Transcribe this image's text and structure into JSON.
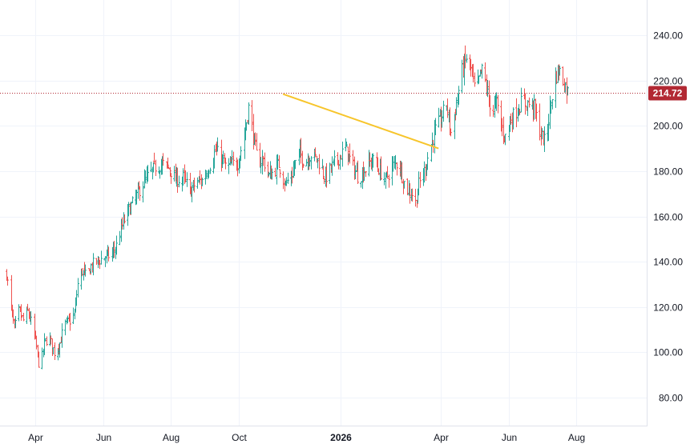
{
  "chart_data": {
    "type": "ohlc",
    "title": "",
    "xlabel": "",
    "ylabel": "",
    "ylim": [
      70,
      250
    ],
    "y_ticks": [
      "80.00",
      "100.00",
      "120.00",
      "140.00",
      "160.00",
      "180.00",
      "200.00",
      "220.00",
      "240.00"
    ],
    "x_ticks": [
      {
        "label": "Apr",
        "date": "2025-04-01",
        "bold": false
      },
      {
        "label": "Jun",
        "date": "2025-06-01",
        "bold": false
      },
      {
        "label": "Aug",
        "date": "2025-08-01",
        "bold": false
      },
      {
        "label": "Oct",
        "date": "2025-10-01",
        "bold": false
      },
      {
        "label": "2026",
        "date": "2026-01-01",
        "bold": true
      },
      {
        "label": "Apr",
        "date": "2026-04-01",
        "bold": false
      },
      {
        "label": "Jun",
        "date": "2026-06-01",
        "bold": false
      },
      {
        "label": "Aug",
        "date": "2026-08-01",
        "bold": false
      }
    ],
    "grid": true,
    "last_price": 214.72,
    "last_price_label": "214.72",
    "colors": {
      "up": "#26a69a",
      "down": "#ef5350",
      "trendline": "#f7c52b",
      "last_price": "#b22833",
      "grid": "#f0f3fa",
      "axis": "#e0e3eb",
      "text": "#131722"
    },
    "trendline": {
      "start": {
        "date": "2025-11-10",
        "value": 214
      },
      "end": {
        "date": "2026-03-30",
        "value": 190
      }
    },
    "anchors": [
      [
        "2025-03-06",
        135
      ],
      [
        "2025-03-09",
        122
      ],
      [
        "2025-03-13",
        110
      ],
      [
        "2025-03-17",
        118
      ],
      [
        "2025-03-21",
        114
      ],
      [
        "2025-03-25",
        118
      ],
      [
        "2025-03-29",
        112
      ],
      [
        "2025-04-02",
        102
      ],
      [
        "2025-04-05",
        92
      ],
      [
        "2025-04-09",
        104
      ],
      [
        "2025-04-13",
        107
      ],
      [
        "2025-04-18",
        100
      ],
      [
        "2025-04-23",
        104
      ],
      [
        "2025-04-27",
        112
      ],
      [
        "2025-05-02",
        114
      ],
      [
        "2025-05-06",
        117
      ],
      [
        "2025-05-09",
        130
      ],
      [
        "2025-05-13",
        136
      ],
      [
        "2025-05-17",
        133
      ],
      [
        "2025-05-21",
        138
      ],
      [
        "2025-05-26",
        140
      ],
      [
        "2025-06-02",
        142
      ],
      [
        "2025-06-08",
        143
      ],
      [
        "2025-06-13",
        147
      ],
      [
        "2025-06-18",
        156
      ],
      [
        "2025-06-24",
        163
      ],
      [
        "2025-06-30",
        168
      ],
      [
        "2025-07-06",
        174
      ],
      [
        "2025-07-12",
        178
      ],
      [
        "2025-07-18",
        182
      ],
      [
        "2025-07-25",
        183
      ],
      [
        "2025-07-31",
        181
      ],
      [
        "2025-08-05",
        176
      ],
      [
        "2025-08-12",
        177
      ],
      [
        "2025-08-18",
        171
      ],
      [
        "2025-08-24",
        175
      ],
      [
        "2025-08-30",
        176
      ],
      [
        "2025-09-05",
        183
      ],
      [
        "2025-09-10",
        189
      ],
      [
        "2025-09-15",
        186
      ],
      [
        "2025-09-20",
        181
      ],
      [
        "2025-09-25",
        183
      ],
      [
        "2025-09-30",
        184
      ],
      [
        "2025-10-05",
        193
      ],
      [
        "2025-10-10",
        208
      ],
      [
        "2025-10-14",
        196
      ],
      [
        "2025-10-18",
        184
      ],
      [
        "2025-10-23",
        185
      ],
      [
        "2025-10-28",
        178
      ],
      [
        "2025-11-02",
        180
      ],
      [
        "2025-11-06",
        183
      ],
      [
        "2025-11-12",
        174
      ],
      [
        "2025-11-18",
        179
      ],
      [
        "2025-11-24",
        188
      ],
      [
        "2025-11-30",
        184
      ],
      [
        "2025-12-06",
        188
      ],
      [
        "2025-12-12",
        184
      ],
      [
        "2025-12-18",
        177
      ],
      [
        "2025-12-24",
        182
      ],
      [
        "2025-12-30",
        186
      ],
      [
        "2026-01-05",
        190
      ],
      [
        "2026-01-11",
        183
      ],
      [
        "2026-01-17",
        177
      ],
      [
        "2026-01-23",
        181
      ],
      [
        "2026-01-29",
        185
      ],
      [
        "2026-02-04",
        181
      ],
      [
        "2026-02-10",
        176
      ],
      [
        "2026-02-16",
        182
      ],
      [
        "2026-02-22",
        184
      ],
      [
        "2026-02-28",
        173
      ],
      [
        "2026-03-06",
        170
      ],
      [
        "2026-03-09",
        166
      ],
      [
        "2026-03-12",
        174
      ],
      [
        "2026-03-17",
        180
      ],
      [
        "2026-03-22",
        190
      ],
      [
        "2026-03-27",
        198
      ],
      [
        "2026-04-01",
        203
      ],
      [
        "2026-04-06",
        210
      ],
      [
        "2026-04-10",
        197
      ],
      [
        "2026-04-15",
        210
      ],
      [
        "2026-04-20",
        224
      ],
      [
        "2026-04-24",
        230
      ],
      [
        "2026-04-28",
        225
      ],
      [
        "2026-05-02",
        214
      ],
      [
        "2026-05-06",
        222
      ],
      [
        "2026-05-09",
        225
      ],
      [
        "2026-05-13",
        214
      ],
      [
        "2026-05-17",
        206
      ],
      [
        "2026-05-21",
        210
      ],
      [
        "2026-05-25",
        200
      ],
      [
        "2026-05-29",
        195
      ],
      [
        "2026-06-02",
        202
      ],
      [
        "2026-06-07",
        206
      ],
      [
        "2026-06-12",
        210
      ],
      [
        "2026-06-18",
        210
      ],
      [
        "2026-06-24",
        208
      ],
      [
        "2026-06-30",
        196
      ],
      [
        "2026-07-04",
        192
      ],
      [
        "2026-07-08",
        207
      ],
      [
        "2026-07-12",
        220
      ],
      [
        "2026-07-16",
        225
      ],
      [
        "2026-07-20",
        220
      ],
      [
        "2026-07-24",
        215
      ]
    ]
  }
}
